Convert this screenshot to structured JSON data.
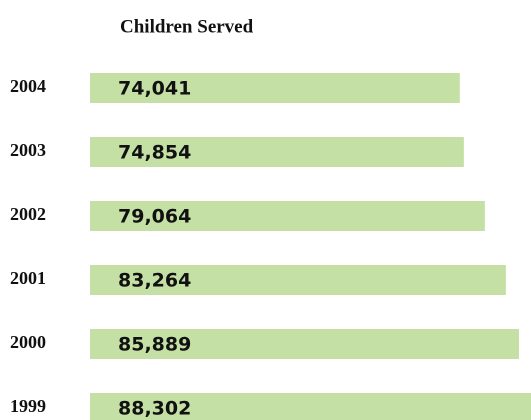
{
  "chart_data": {
    "type": "bar",
    "orientation": "horizontal",
    "title": "Children Served",
    "categories": [
      "2004",
      "2003",
      "2002",
      "2001",
      "2000",
      "1999"
    ],
    "values": [
      74041,
      74854,
      79064,
      83264,
      85889,
      88302
    ],
    "value_labels": [
      "74,041",
      "74,854",
      "79,064",
      "83,264",
      "85,889",
      "88,302"
    ],
    "color": "#c5e0a5",
    "xlim": [
      0,
      90000
    ]
  }
}
